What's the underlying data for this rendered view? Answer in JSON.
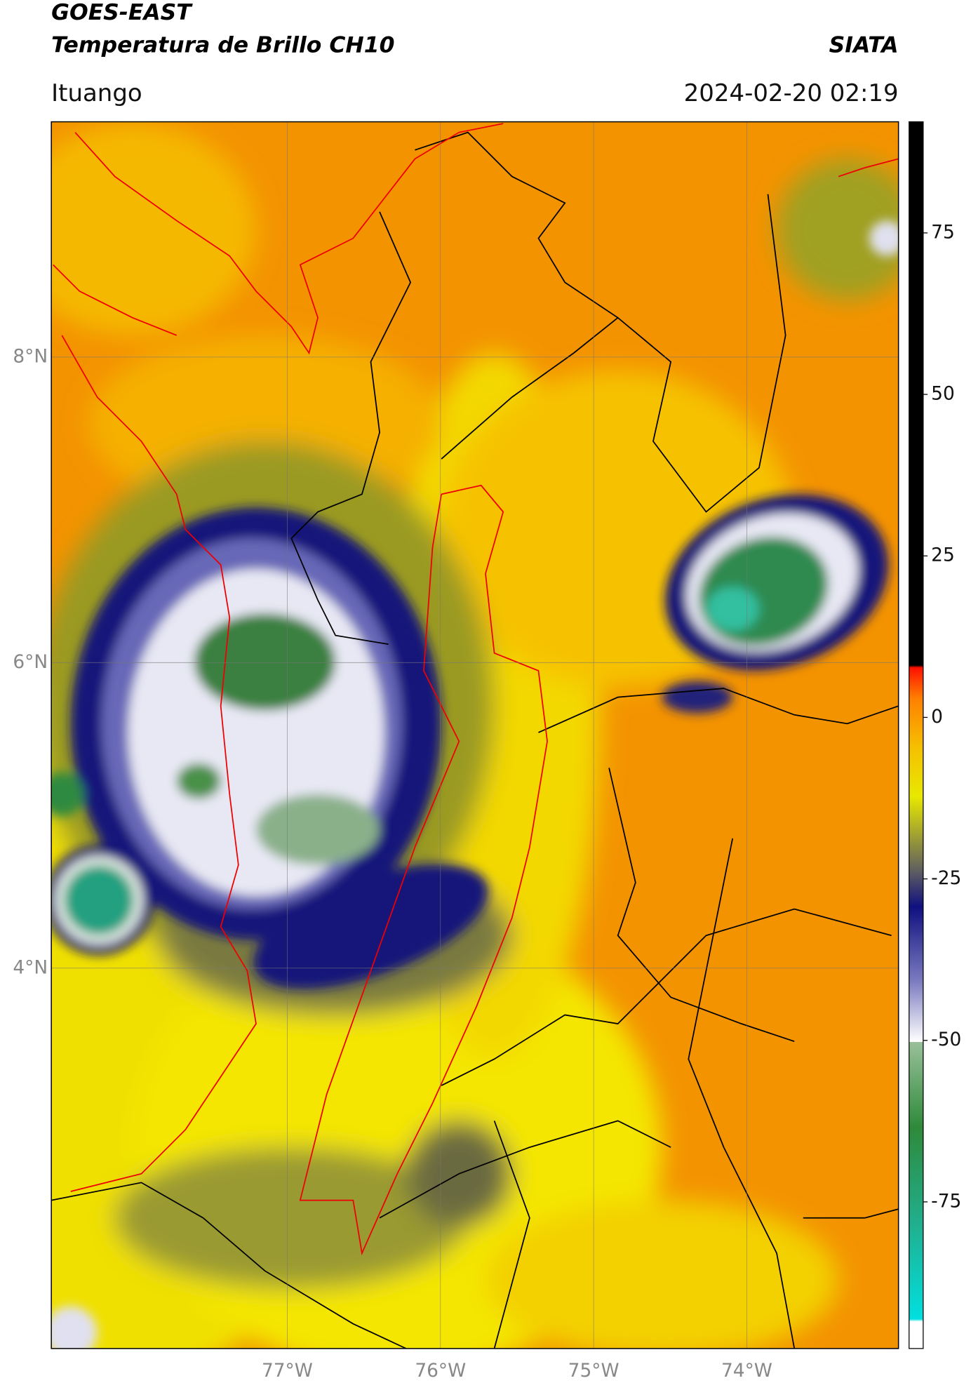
{
  "header": {
    "title": "GOES-EAST",
    "subtitle": "Temperatura de Brillo CH10",
    "agency": "SIATA",
    "region": "Ituango",
    "timestamp": "2024-02-20 02:19"
  },
  "map": {
    "lonlim": [
      -78.54,
      -73.01
    ],
    "latlim": [
      1.51,
      9.54
    ],
    "lat_ticks": [
      {
        "value": 8,
        "label": "8°N"
      },
      {
        "value": 6,
        "label": "6°N"
      },
      {
        "value": 4,
        "label": "4°N"
      }
    ],
    "lon_ticks": [
      {
        "value": -77,
        "label": "77°W"
      },
      {
        "value": -76,
        "label": "76°W"
      },
      {
        "value": -75,
        "label": "75°W"
      },
      {
        "value": -74,
        "label": "74°W"
      }
    ]
  },
  "colorbar": {
    "clim": [
      -97.7,
      92.2
    ],
    "ticks": [
      75,
      50,
      25,
      0,
      -25,
      -50,
      -75
    ]
  }
}
